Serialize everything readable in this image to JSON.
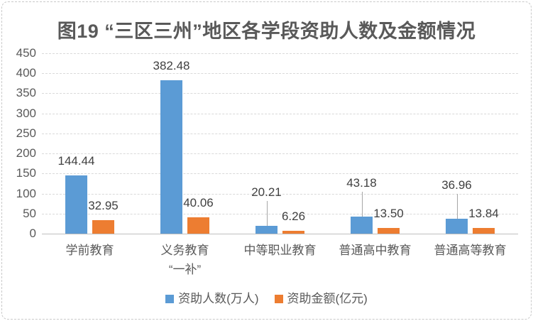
{
  "chart_data": {
    "type": "bar",
    "title": "图19 “三区三州”地区各学段资助人数及金额情况",
    "categories": [
      "学前教育",
      "义务教育\n“一补”",
      "中等职业教育",
      "普通高中教育",
      "普通高等教育"
    ],
    "series": [
      {
        "name": "资助人数(万人)",
        "color": "#5B9BD5",
        "values": [
          144.44,
          382.48,
          20.21,
          43.18,
          36.96
        ]
      },
      {
        "name": "资助金额(亿元)",
        "color": "#ED7D31",
        "values": [
          32.95,
          40.06,
          6.26,
          13.5,
          13.84
        ]
      }
    ],
    "xlabel": "",
    "ylabel": "",
    "ylim": [
      0,
      450
    ],
    "yticks": [
      0,
      50,
      100,
      150,
      200,
      250,
      300,
      350,
      400,
      450
    ],
    "grid": true,
    "legend_position": "bottom",
    "value_label_decimals": 2
  }
}
